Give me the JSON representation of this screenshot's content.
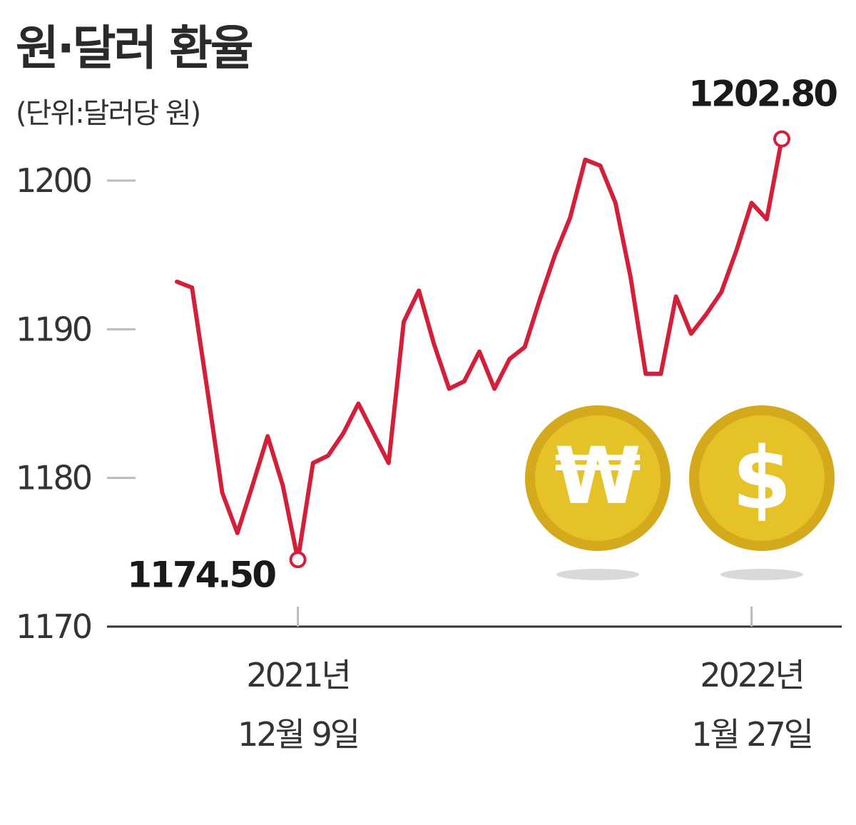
{
  "title": "원·달러 환율",
  "unit": "(단위:달러당 원)",
  "colors": {
    "line": "#d41f3a",
    "axis": "#333333",
    "tick": "#bbbbbb",
    "coin": "#e6c229",
    "coin_edge": "#d4a91b"
  },
  "icons": [
    "won-coin-icon",
    "dollar-coin-icon"
  ],
  "coin_symbols": {
    "won": "₩",
    "dollar": "$"
  },
  "chart_data": {
    "type": "line",
    "title": "원·달러 환율",
    "ylabel": "(단위:달러당 원)",
    "ylim": [
      1170,
      1205
    ],
    "yticks": [
      1170,
      1180,
      1190,
      1200
    ],
    "x_tick_labels": [
      {
        "index": 8,
        "line1": "2021년",
        "line2": "12월 9일"
      },
      {
        "index": 38,
        "line1": "2022년",
        "line2": "1월 27일"
      }
    ],
    "series": [
      {
        "values": [
          1193.2,
          1192.8,
          1186.0,
          1179.0,
          1176.3,
          1179.5,
          1182.8,
          1179.5,
          1174.5,
          1181.0,
          1181.5,
          1183.0,
          1185.0,
          1183.0,
          1181.0,
          1190.5,
          1192.6,
          1189.0,
          1186.0,
          1186.5,
          1188.5,
          1186.0,
          1188.0,
          1188.8,
          1192.0,
          1195.0,
          1197.5,
          1201.4,
          1201.0,
          1198.5,
          1193.5,
          1187.0,
          1187.0,
          1192.2,
          1189.7,
          1191.0,
          1192.5,
          1195.3,
          1198.5,
          1197.4,
          1202.8
        ]
      }
    ],
    "annotations": [
      {
        "index": 8,
        "value": 1174.5,
        "text": "1174.50"
      },
      {
        "index": 40,
        "value": 1202.8,
        "text": "1202.80"
      }
    ],
    "grid": false
  }
}
